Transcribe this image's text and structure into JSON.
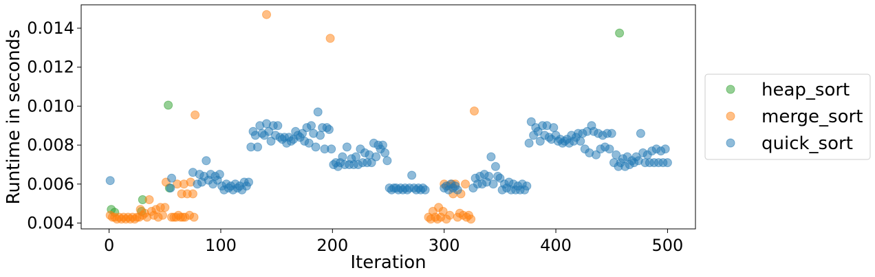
{
  "chart_data": {
    "type": "scatter",
    "xlabel": "Iteration",
    "ylabel": "Runtime in seconds",
    "xlim": [
      -25,
      525
    ],
    "ylim": [
      0.0037,
      0.0152
    ],
    "x_ticks": [
      0,
      100,
      200,
      300,
      400,
      500
    ],
    "x_tick_labels": [
      "0",
      "100",
      "200",
      "300",
      "400",
      "500"
    ],
    "y_ticks": [
      0.004,
      0.006,
      0.008,
      0.01,
      0.012,
      0.014
    ],
    "y_tick_labels": [
      "0.004",
      "0.006",
      "0.008",
      "0.010",
      "0.012",
      "0.014"
    ],
    "grid": false,
    "legend_position": "right (outside plot)",
    "series": [
      {
        "name": "heap_sort",
        "color": "#2ca02c",
        "points": [
          [
            2,
            0.0047
          ],
          [
            5,
            0.00455
          ],
          [
            30,
            0.0052
          ],
          [
            29,
            0.0046
          ],
          [
            53,
            0.01005
          ],
          [
            54,
            0.0058
          ],
          [
            457,
            0.01375
          ]
        ]
      },
      {
        "name": "merge_sort",
        "color": "#ff7f0e",
        "points": [
          [
            1,
            0.0044
          ],
          [
            3,
            0.0043
          ],
          [
            5,
            0.0043
          ],
          [
            7,
            0.0042
          ],
          [
            9,
            0.0043
          ],
          [
            11,
            0.0042
          ],
          [
            13,
            0.0043
          ],
          [
            15,
            0.0042
          ],
          [
            17,
            0.0043
          ],
          [
            19,
            0.0042
          ],
          [
            21,
            0.0043
          ],
          [
            23,
            0.0042
          ],
          [
            25,
            0.0043
          ],
          [
            27,
            0.0043
          ],
          [
            28,
            0.0047
          ],
          [
            30,
            0.0044
          ],
          [
            32,
            0.0045
          ],
          [
            34,
            0.0043
          ],
          [
            36,
            0.0052
          ],
          [
            38,
            0.0046
          ],
          [
            40,
            0.0044
          ],
          [
            42,
            0.0047
          ],
          [
            44,
            0.0043
          ],
          [
            46,
            0.0048
          ],
          [
            48,
            0.0044
          ],
          [
            50,
            0.0048
          ],
          [
            51,
            0.0061
          ],
          [
            56,
            0.0043
          ],
          [
            58,
            0.0043
          ],
          [
            60,
            0.0043
          ],
          [
            61,
            0.006
          ],
          [
            62,
            0.0044
          ],
          [
            64,
            0.0043
          ],
          [
            65,
            0.0055
          ],
          [
            66,
            0.0043
          ],
          [
            67,
            0.006
          ],
          [
            68,
            0.0043
          ],
          [
            70,
            0.0055
          ],
          [
            72,
            0.0044
          ],
          [
            73,
            0.0061
          ],
          [
            75,
            0.0055
          ],
          [
            76,
            0.0043
          ],
          [
            77,
            0.00955
          ],
          [
            141,
            0.0147
          ],
          [
            198,
            0.01348
          ],
          [
            286,
            0.0043
          ],
          [
            288,
            0.0042
          ],
          [
            290,
            0.0046
          ],
          [
            292,
            0.0043
          ],
          [
            294,
            0.0042
          ],
          [
            295,
            0.0048
          ],
          [
            297,
            0.0043
          ],
          [
            299,
            0.0046
          ],
          [
            300,
            0.006
          ],
          [
            302,
            0.0042
          ],
          [
            304,
            0.0059
          ],
          [
            305,
            0.0044
          ],
          [
            307,
            0.006
          ],
          [
            308,
            0.0055
          ],
          [
            310,
            0.006
          ],
          [
            312,
            0.0043
          ],
          [
            314,
            0.0045
          ],
          [
            315,
            0.0055
          ],
          [
            317,
            0.0044
          ],
          [
            319,
            0.006
          ],
          [
            320,
            0.0043
          ],
          [
            322,
            0.0044
          ],
          [
            324,
            0.0042
          ],
          [
            327,
            0.00975
          ]
        ]
      },
      {
        "name": "quick_sort",
        "color": "#1f77b4",
        "points": [
          [
            1,
            0.00618
          ],
          [
            56,
            0.0063
          ],
          [
            55,
            0.0058
          ],
          [
            75,
            0.0066
          ],
          [
            79,
            0.006
          ],
          [
            81,
            0.0065
          ],
          [
            83,
            0.0061
          ],
          [
            85,
            0.0064
          ],
          [
            87,
            0.0072
          ],
          [
            89,
            0.0062
          ],
          [
            91,
            0.0065
          ],
          [
            93,
            0.006
          ],
          [
            95,
            0.0064
          ],
          [
            97,
            0.0062
          ],
          [
            99,
            0.0065
          ],
          [
            101,
            0.0059
          ],
          [
            103,
            0.0057
          ],
          [
            105,
            0.006
          ],
          [
            107,
            0.0058
          ],
          [
            109,
            0.0059
          ],
          [
            111,
            0.0057
          ],
          [
            113,
            0.006
          ],
          [
            115,
            0.0058
          ],
          [
            117,
            0.0059
          ],
          [
            119,
            0.0057
          ],
          [
            121,
            0.0061
          ],
          [
            123,
            0.0059
          ],
          [
            125,
            0.0061
          ],
          [
            127,
            0.0079
          ],
          [
            129,
            0.0087
          ],
          [
            131,
            0.0085
          ],
          [
            133,
            0.0079
          ],
          [
            135,
            0.009
          ],
          [
            137,
            0.0086
          ],
          [
            139,
            0.0085
          ],
          [
            141,
            0.0091
          ],
          [
            143,
            0.0087
          ],
          [
            145,
            0.0082
          ],
          [
            147,
            0.009
          ],
          [
            149,
            0.0085
          ],
          [
            151,
            0.009
          ],
          [
            153,
            0.0084
          ],
          [
            155,
            0.0083
          ],
          [
            157,
            0.0084
          ],
          [
            159,
            0.0081
          ],
          [
            161,
            0.0084
          ],
          [
            163,
            0.0082
          ],
          [
            165,
            0.0083
          ],
          [
            167,
            0.0087
          ],
          [
            169,
            0.0085
          ],
          [
            171,
            0.0084
          ],
          [
            173,
            0.0086
          ],
          [
            175,
            0.0082
          ],
          [
            177,
            0.0089
          ],
          [
            179,
            0.0081
          ],
          [
            181,
            0.009
          ],
          [
            183,
            0.0086
          ],
          [
            185,
            0.0079
          ],
          [
            187,
            0.0097
          ],
          [
            189,
            0.0085
          ],
          [
            191,
            0.0089
          ],
          [
            193,
            0.0078
          ],
          [
            195,
            0.0089
          ],
          [
            197,
            0.0088
          ],
          [
            199,
            0.0078
          ],
          [
            201,
            0.007
          ],
          [
            203,
            0.0071
          ],
          [
            205,
            0.0069
          ],
          [
            207,
            0.0071
          ],
          [
            209,
            0.0074
          ],
          [
            211,
            0.007
          ],
          [
            213,
            0.0079
          ],
          [
            215,
            0.007
          ],
          [
            217,
            0.0073
          ],
          [
            219,
            0.007
          ],
          [
            221,
            0.0074
          ],
          [
            223,
            0.007
          ],
          [
            225,
            0.0078
          ],
          [
            227,
            0.0071
          ],
          [
            229,
            0.0076
          ],
          [
            231,
            0.0071
          ],
          [
            233,
            0.0075
          ],
          [
            235,
            0.0071
          ],
          [
            237,
            0.0081
          ],
          [
            239,
            0.0074
          ],
          [
            241,
            0.008
          ],
          [
            243,
            0.0078
          ],
          [
            245,
            0.008
          ],
          [
            247,
            0.0076
          ],
          [
            249,
            0.0072
          ],
          [
            251,
            0.0058
          ],
          [
            253,
            0.0057
          ],
          [
            255,
            0.0058
          ],
          [
            257,
            0.0058
          ],
          [
            259,
            0.0057
          ],
          [
            261,
            0.0058
          ],
          [
            263,
            0.0057
          ],
          [
            265,
            0.0058
          ],
          [
            267,
            0.0057
          ],
          [
            269,
            0.0058
          ],
          [
            271,
            0.00645
          ],
          [
            273,
            0.0058
          ],
          [
            275,
            0.0057
          ],
          [
            277,
            0.0058
          ],
          [
            279,
            0.0057
          ],
          [
            281,
            0.0058
          ],
          [
            283,
            0.0057
          ],
          [
            300,
            0.0058
          ],
          [
            302,
            0.0059
          ],
          [
            304,
            0.0057
          ],
          [
            306,
            0.006
          ],
          [
            308,
            0.0058
          ],
          [
            310,
            0.0059
          ],
          [
            312,
            0.0057
          ],
          [
            326,
            0.0058
          ],
          [
            328,
            0.0063
          ],
          [
            330,
            0.006
          ],
          [
            332,
            0.0064
          ],
          [
            334,
            0.006
          ],
          [
            336,
            0.0065
          ],
          [
            338,
            0.0061
          ],
          [
            340,
            0.0064
          ],
          [
            342,
            0.0074
          ],
          [
            344,
            0.006
          ],
          [
            346,
            0.0069
          ],
          [
            348,
            0.0064
          ],
          [
            350,
            0.0063
          ],
          [
            352,
            0.0057
          ],
          [
            354,
            0.006
          ],
          [
            356,
            0.0058
          ],
          [
            358,
            0.0061
          ],
          [
            360,
            0.0057
          ],
          [
            362,
            0.006
          ],
          [
            364,
            0.0057
          ],
          [
            366,
            0.0059
          ],
          [
            368,
            0.0057
          ],
          [
            370,
            0.006
          ],
          [
            372,
            0.0057
          ],
          [
            374,
            0.0059
          ],
          [
            376,
            0.0081
          ],
          [
            378,
            0.0092
          ],
          [
            380,
            0.0085
          ],
          [
            382,
            0.0089
          ],
          [
            384,
            0.0087
          ],
          [
            386,
            0.0082
          ],
          [
            388,
            0.009
          ],
          [
            390,
            0.0085
          ],
          [
            392,
            0.009
          ],
          [
            394,
            0.0084
          ],
          [
            396,
            0.0083
          ],
          [
            398,
            0.0089
          ],
          [
            400,
            0.0085
          ],
          [
            402,
            0.0082
          ],
          [
            404,
            0.0083
          ],
          [
            406,
            0.0081
          ],
          [
            408,
            0.0082
          ],
          [
            410,
            0.0083
          ],
          [
            412,
            0.0081
          ],
          [
            414,
            0.0085
          ],
          [
            416,
            0.0082
          ],
          [
            418,
            0.0084
          ],
          [
            420,
            0.0086
          ],
          [
            422,
            0.0082
          ],
          [
            424,
            0.0086
          ],
          [
            426,
            0.0078
          ],
          [
            428,
            0.0087
          ],
          [
            430,
            0.0076
          ],
          [
            432,
            0.009
          ],
          [
            434,
            0.0087
          ],
          [
            436,
            0.0075
          ],
          [
            438,
            0.0086
          ],
          [
            440,
            0.0078
          ],
          [
            442,
            0.0085
          ],
          [
            444,
            0.0079
          ],
          [
            446,
            0.0086
          ],
          [
            448,
            0.0078
          ],
          [
            450,
            0.0086
          ],
          [
            452,
            0.0071
          ],
          [
            454,
            0.0075
          ],
          [
            456,
            0.0069
          ],
          [
            458,
            0.0071
          ],
          [
            460,
            0.0073
          ],
          [
            462,
            0.0069
          ],
          [
            464,
            0.0074
          ],
          [
            466,
            0.007
          ],
          [
            468,
            0.0072
          ],
          [
            470,
            0.0071
          ],
          [
            472,
            0.0074
          ],
          [
            474,
            0.0072
          ],
          [
            476,
            0.0086
          ],
          [
            478,
            0.0076
          ],
          [
            480,
            0.0071
          ],
          [
            482,
            0.0075
          ],
          [
            484,
            0.0071
          ],
          [
            486,
            0.0077
          ],
          [
            488,
            0.0071
          ],
          [
            490,
            0.0078
          ],
          [
            492,
            0.0071
          ],
          [
            494,
            0.0077
          ],
          [
            496,
            0.0071
          ],
          [
            498,
            0.0078
          ],
          [
            500,
            0.0071
          ]
        ]
      }
    ]
  }
}
